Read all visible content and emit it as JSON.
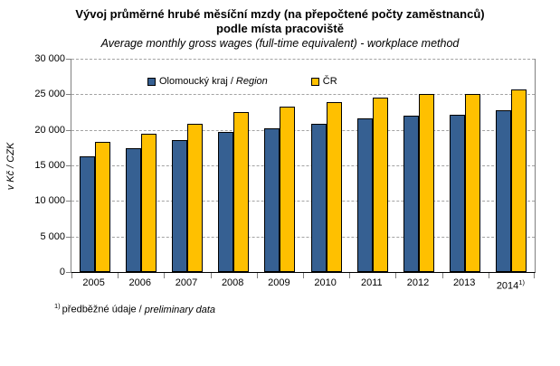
{
  "title": {
    "line1": "Vývoj průměrné hrubé měsíční mzdy (na přepočtené počty zaměstnanců)",
    "line2": "podle místa pracoviště",
    "subtitle": "Average monthly gross wages (full-time equivalent) - workplace method"
  },
  "y_axis": {
    "title": "v Kč / CZK",
    "tick_labels": [
      "30 000",
      "25 000",
      "20 000",
      "15 000",
      "10 000",
      "5 000",
      "0"
    ]
  },
  "legend": {
    "items": [
      {
        "label": "Olomoucký kraj /",
        "label_italic": "Region",
        "color": "#366092"
      },
      {
        "label": "ČR",
        "label_italic": "",
        "color": "#FFC000"
      }
    ]
  },
  "footnote": {
    "marker": "1)",
    "text": "předběžné údaje /",
    "text_italic": "preliminary data"
  },
  "chart_data": {
    "type": "bar",
    "categories": [
      "2005",
      "2006",
      "2007",
      "2008",
      "2009",
      "2010",
      "2011",
      "2012",
      "2013",
      "2014"
    ],
    "category_superscripts": [
      "",
      "",
      "",
      "",
      "",
      "",
      "",
      "",
      "",
      "1)"
    ],
    "series": [
      {
        "name": "Olomoucký kraj / Region",
        "color": "#366092",
        "values": [
          16300,
          17400,
          18600,
          19700,
          20200,
          20900,
          21600,
          22000,
          22100,
          22700
        ]
      },
      {
        "name": "ČR",
        "color": "#FFC000",
        "values": [
          18300,
          19500,
          20900,
          22500,
          23300,
          23900,
          24500,
          25100,
          25000,
          25700
        ]
      }
    ],
    "title": "Vývoj průměrné hrubé měsíční mzdy (na přepočtené počty zaměstnanců) podle místa pracoviště",
    "subtitle": "Average monthly gross wages (full-time equivalent) - workplace method",
    "xlabel": "",
    "ylabel": "v Kč / CZK",
    "ylim": [
      0,
      30000
    ],
    "ytick_step": 5000,
    "grid": "horizontal-dashed",
    "legend_position": "top-inside",
    "bar_outline_color": "#000000"
  }
}
